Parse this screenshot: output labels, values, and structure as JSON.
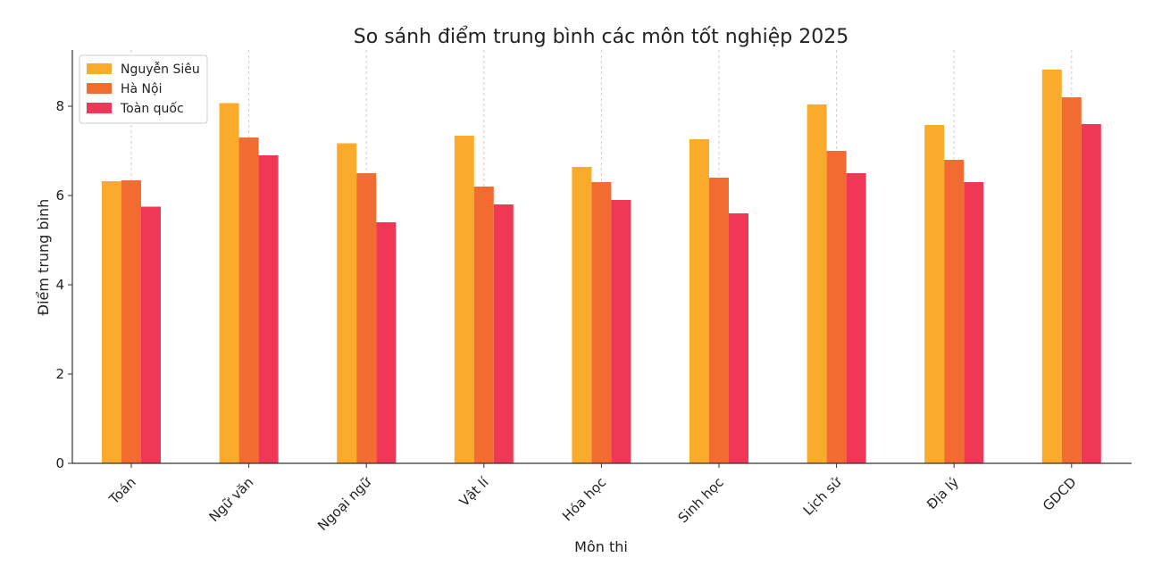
{
  "chart_data": {
    "type": "bar",
    "title": "So sánh điểm trung bình các môn tốt nghiệp 2025",
    "xlabel": "Môn thi",
    "ylabel": "Điểm trung bình",
    "categories": [
      "Toán",
      "Ngữ văn",
      "Ngoại ngữ",
      "Vật lí",
      "Hóa học",
      "Sinh học",
      "Lịch sử",
      "Địa lý",
      "GDCD"
    ],
    "series": [
      {
        "name": "Nguyễn Siêu",
        "color": "#fbab2b",
        "values": [
          6.32,
          8.07,
          7.17,
          7.34,
          6.64,
          7.26,
          8.04,
          7.58,
          8.82
        ]
      },
      {
        "name": "Hà Nội",
        "color": "#f26b30",
        "values": [
          6.34,
          7.3,
          6.5,
          6.2,
          6.3,
          6.4,
          7.0,
          6.8,
          8.2
        ]
      },
      {
        "name": "Toàn quốc",
        "color": "#f13756",
        "values": [
          5.75,
          6.9,
          5.4,
          5.8,
          5.9,
          5.6,
          6.5,
          6.3,
          7.6
        ]
      }
    ],
    "yticks": [
      0,
      2,
      4,
      6,
      8
    ],
    "ylim": [
      0,
      9.26
    ],
    "legend_position": "top-left",
    "grid": "vertical dashed"
  }
}
